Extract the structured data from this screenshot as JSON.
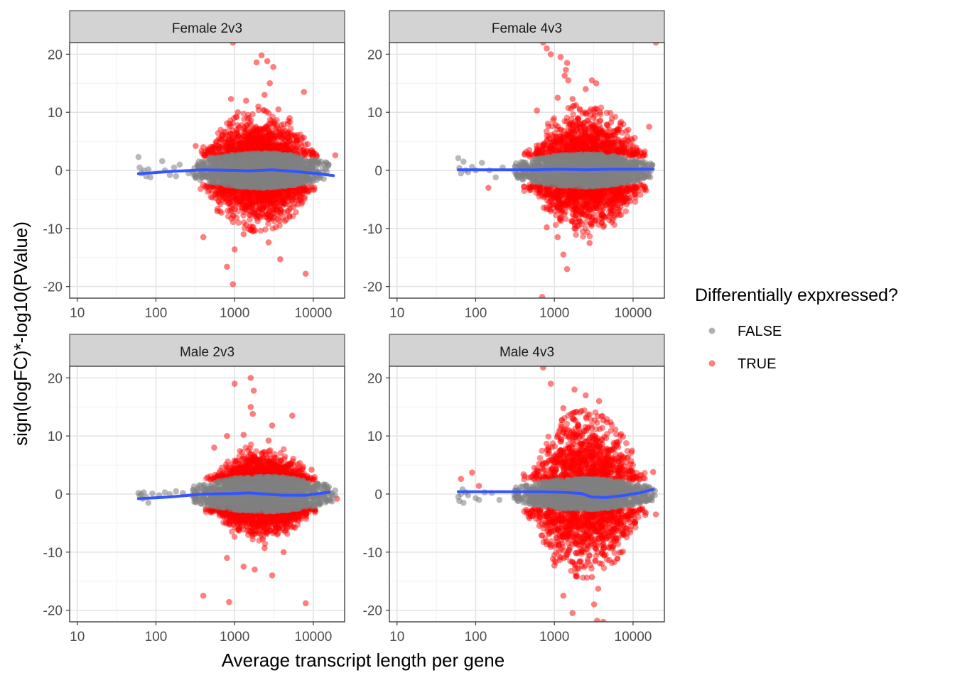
{
  "chart_data": {
    "type": "scatter",
    "xlabel": "Average transcript length per gene",
    "ylabel": "sign(logFC)*-log10(PValue)",
    "x_scale": "log10",
    "xlim": [
      8,
      25000
    ],
    "ylim": [
      -22,
      22
    ],
    "x_ticks": [
      10,
      100,
      1000,
      10000
    ],
    "x_tick_labels": [
      "10",
      "100",
      "1000",
      "10000"
    ],
    "y_ticks": [
      -20,
      -10,
      0,
      10,
      20
    ],
    "y_tick_labels": [
      "-20",
      "-10",
      "0",
      "10",
      "20"
    ],
    "grid": true,
    "legend": {
      "title": "Differentially expxressed?",
      "position": "right",
      "entries": [
        {
          "label": "FALSE",
          "color": "#7f7f7f"
        },
        {
          "label": "TRUE",
          "color": "#ff0000"
        }
      ]
    },
    "colors": {
      "false": "#7f7f7f",
      "true": "#ff0000",
      "smooth": "#3355ff",
      "strip": "#d3d3d3"
    },
    "panels": [
      {
        "title": "Female 2v3",
        "smooth": [
          [
            60,
            -0.6
          ],
          [
            150,
            -0.2
          ],
          [
            400,
            0.1
          ],
          [
            1000,
            0.0
          ],
          [
            1500,
            -0.1
          ],
          [
            3000,
            0.1
          ],
          [
            6000,
            -0.2
          ],
          [
            12000,
            -0.6
          ],
          [
            18000,
            -0.9
          ]
        ],
        "grey_band": {
          "xmin": 280,
          "xmax": 16000,
          "ymax": 3.0
        },
        "red_cloud": {
          "xmin": 350,
          "xmax": 12000,
          "ymax": 8.0
        },
        "sig_points": [
          [
            950,
            22
          ],
          [
            2200,
            19.8
          ],
          [
            1900,
            18.6
          ],
          [
            2600,
            18.8
          ],
          [
            3100,
            17.8
          ],
          [
            2800,
            15
          ],
          [
            2400,
            13
          ],
          [
            7600,
            13.5
          ],
          [
            1400,
            12
          ],
          [
            2000,
            11
          ],
          [
            1100,
            10
          ],
          [
            3600,
            10.5
          ],
          [
            900,
            12.3
          ],
          [
            5000,
            9
          ],
          [
            400,
            4
          ],
          [
            320,
            4.2
          ],
          [
            19000,
            2.6
          ],
          [
            400,
            -11.5
          ],
          [
            800,
            -16.6
          ],
          [
            950,
            -19.6
          ],
          [
            1000,
            -13.6
          ],
          [
            2700,
            -12.4
          ],
          [
            1300,
            -11
          ],
          [
            1700,
            -10.5
          ],
          [
            3800,
            -15.3
          ],
          [
            8000,
            -17.8
          ],
          [
            5000,
            -8
          ],
          [
            600,
            -7
          ]
        ],
        "grey_points": [
          [
            60,
            2.3
          ],
          [
            62,
            0.5
          ],
          [
            65,
            -0.5
          ],
          [
            70,
            0
          ],
          [
            75,
            -1
          ],
          [
            80,
            0.2
          ],
          [
            85,
            -1.2
          ],
          [
            120,
            1.6
          ],
          [
            130,
            0
          ],
          [
            150,
            -0.8
          ],
          [
            170,
            0.5
          ],
          [
            180,
            -1
          ],
          [
            200,
            1
          ],
          [
            260,
            -0.5
          ]
        ]
      },
      {
        "title": "Female 4v3",
        "smooth": [
          [
            60,
            0.1
          ],
          [
            200,
            0.1
          ],
          [
            600,
            0.1
          ],
          [
            1200,
            0.2
          ],
          [
            2500,
            0.1
          ],
          [
            5000,
            0.2
          ],
          [
            10000,
            0.2
          ],
          [
            18000,
            0.2
          ]
        ],
        "grey_band": {
          "xmin": 300,
          "xmax": 18000,
          "ymax": 2.8
        },
        "red_cloud": {
          "xmin": 400,
          "xmax": 15000,
          "ymax": 9.0
        },
        "sig_points": [
          [
            720,
            22
          ],
          [
            800,
            21
          ],
          [
            900,
            20
          ],
          [
            1200,
            19.5
          ],
          [
            1450,
            18.5
          ],
          [
            1400,
            17.3
          ],
          [
            1350,
            16.3
          ],
          [
            1500,
            15.5
          ],
          [
            3000,
            15.5
          ],
          [
            3400,
            15
          ],
          [
            2500,
            14
          ],
          [
            1100,
            12.5
          ],
          [
            1700,
            12.3
          ],
          [
            600,
            10.3
          ],
          [
            3800,
            10
          ],
          [
            16000,
            7.5
          ],
          [
            19500,
            22
          ],
          [
            145,
            -3
          ],
          [
            700,
            -21.8
          ],
          [
            1300,
            -14.5
          ],
          [
            1450,
            -17
          ],
          [
            1100,
            -11.5
          ],
          [
            2800,
            -12.5
          ],
          [
            800,
            -9.8
          ],
          [
            1800,
            -10
          ],
          [
            4000,
            -9
          ]
        ],
        "grey_points": [
          [
            60,
            2.1
          ],
          [
            62,
            0.4
          ],
          [
            65,
            -0.5
          ],
          [
            70,
            1.5
          ],
          [
            75,
            0
          ],
          [
            80,
            -0.3
          ],
          [
            90,
            0.6
          ],
          [
            100,
            0
          ],
          [
            120,
            1.3
          ],
          [
            150,
            0
          ],
          [
            180,
            -1.2
          ],
          [
            220,
            0.5
          ]
        ]
      },
      {
        "title": "Male 2v3",
        "smooth": [
          [
            60,
            -0.8
          ],
          [
            150,
            -0.5
          ],
          [
            400,
            0.0
          ],
          [
            1000,
            0.1
          ],
          [
            1500,
            0.2
          ],
          [
            2500,
            0.0
          ],
          [
            4000,
            -0.2
          ],
          [
            8000,
            -0.2
          ],
          [
            16000,
            0.3
          ]
        ],
        "grey_band": {
          "xmin": 280,
          "xmax": 19000,
          "ymax": 3.0
        },
        "red_cloud": {
          "xmin": 420,
          "xmax": 11000,
          "ymax": 6.5
        },
        "sig_points": [
          [
            1600,
            20
          ],
          [
            1750,
            17.8
          ],
          [
            1000,
            19
          ],
          [
            1600,
            15
          ],
          [
            1700,
            13.8
          ],
          [
            3000,
            11.8
          ],
          [
            5400,
            13.5
          ],
          [
            1300,
            10.2
          ],
          [
            2700,
            9.2
          ],
          [
            550,
            8
          ],
          [
            800,
            10
          ],
          [
            400,
            -17.5
          ],
          [
            850,
            -18.6
          ],
          [
            8000,
            -18.8
          ],
          [
            800,
            -11
          ],
          [
            1300,
            -12.5
          ],
          [
            1800,
            -13
          ],
          [
            3000,
            -14
          ],
          [
            4200,
            -10
          ],
          [
            2400,
            -9.3
          ],
          [
            20000,
            -0.8
          ],
          [
            9500,
            4.2
          ]
        ],
        "grey_points": [
          [
            60,
            0.2
          ],
          [
            62,
            -0.3
          ],
          [
            65,
            0
          ],
          [
            68,
            -0.8
          ],
          [
            70,
            0.3
          ],
          [
            75,
            -0.5
          ],
          [
            80,
            -1.5
          ],
          [
            90,
            0.1
          ],
          [
            110,
            -0.2
          ],
          [
            130,
            0.3
          ],
          [
            150,
            0
          ],
          [
            180,
            0.5
          ],
          [
            220,
            0.2
          ]
        ]
      },
      {
        "title": "Male 4v3",
        "smooth": [
          [
            60,
            0.4
          ],
          [
            200,
            0.4
          ],
          [
            600,
            0.4
          ],
          [
            1300,
            0.3
          ],
          [
            2200,
            0.1
          ],
          [
            3000,
            -0.5
          ],
          [
            4500,
            -0.6
          ],
          [
            7000,
            -0.3
          ],
          [
            12000,
            0.2
          ],
          [
            18000,
            0.8
          ]
        ],
        "grey_band": {
          "xmin": 300,
          "xmax": 19000,
          "ymax": 2.6
        },
        "red_cloud": {
          "xmin": 400,
          "xmax": 15000,
          "ymax": 12.0
        },
        "sig_points": [
          [
            720,
            21.8
          ],
          [
            900,
            19
          ],
          [
            1800,
            18
          ],
          [
            1300,
            14.8
          ],
          [
            2200,
            14.3
          ],
          [
            2500,
            17
          ],
          [
            3700,
            16
          ],
          [
            4200,
            12.7
          ],
          [
            65,
            2.6
          ],
          [
            90,
            3.7
          ],
          [
            110,
            1.4
          ],
          [
            18000,
            3.8
          ],
          [
            19500,
            -3.5
          ],
          [
            1300,
            -17.5
          ],
          [
            1700,
            -20.5
          ],
          [
            3200,
            -19
          ],
          [
            3500,
            -21.8
          ],
          [
            4200,
            -22
          ],
          [
            3000,
            -14.3
          ],
          [
            3600,
            -16.3
          ],
          [
            1000,
            -12.3
          ]
        ],
        "grey_points": [
          [
            60,
            -0.5
          ],
          [
            62,
            -1.2
          ],
          [
            65,
            0
          ],
          [
            68,
            0.8
          ],
          [
            70,
            -1.5
          ],
          [
            75,
            0.3
          ],
          [
            80,
            -0.2
          ],
          [
            100,
            -0.7
          ],
          [
            110,
            -1
          ],
          [
            130,
            0.3
          ],
          [
            160,
            0.2
          ],
          [
            200,
            -1
          ]
        ]
      }
    ]
  }
}
